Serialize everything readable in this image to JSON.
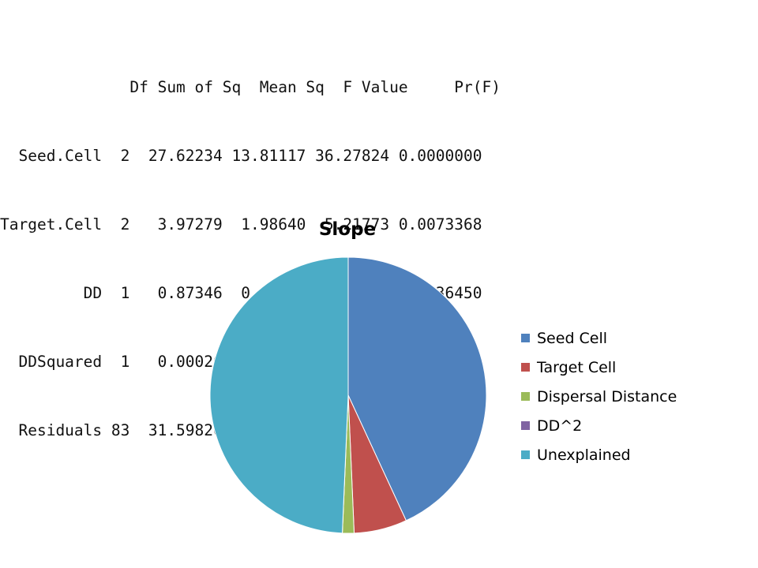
{
  "anova": {
    "header": "              Df Sum of Sq  Mean Sq  F Value     Pr(F)",
    "rows": [
      "  Seed.Cell  2  27.62234 13.81117 36.27824 0.0000000",
      "Target.Cell  2   3.97279  1.98640  5.21773 0.0073368",
      "         DD  1   0.87346  0.87346  2.29435 0.1336450",
      "  DDSquared  1   0.00026  0.00026  0.00068 0.9792425",
      "  Residuals 83  31.59820  0.38070"
    ]
  },
  "chart_data": {
    "type": "pie",
    "title": "Slope",
    "categories": [
      "Seed Cell",
      "Target Cell",
      "Dispersal Distance",
      "DD^2",
      "Unexplained"
    ],
    "values": [
      27.62234,
      3.97279,
      0.87346,
      0.00026,
      31.5982
    ],
    "colors": [
      "#4F81BD",
      "#C0504D",
      "#9BBB59",
      "#8064A2",
      "#4BACC6"
    ],
    "start_angle": "12 o'clock",
    "direction": "clockwise",
    "legend_position": "right"
  }
}
